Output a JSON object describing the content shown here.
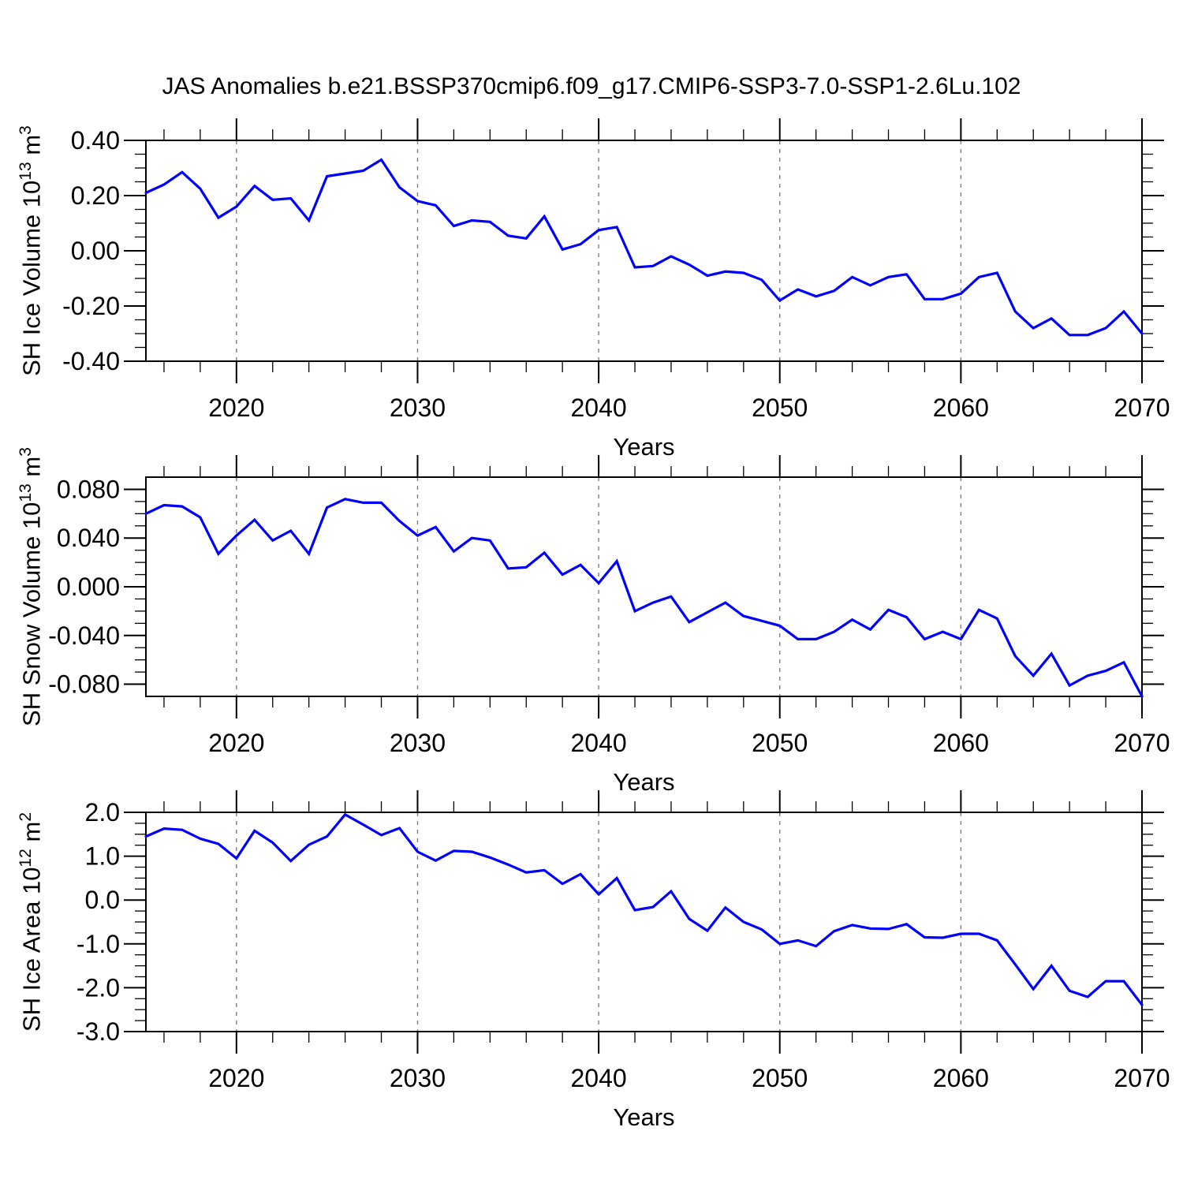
{
  "title": "JAS Anomalies b.e21.BSSP370cmip6.f09_g17.CMIP6-SSP3-7.0-SSP1-2.6Lu.102",
  "line_color": "#0000FF",
  "grid_color": "#7F7F7F",
  "x_axis": {
    "label": "Years",
    "range": [
      2015,
      2070
    ],
    "major_ticks": [
      {
        "v": 2020,
        "label": "2020"
      },
      {
        "v": 2030,
        "label": "2030"
      },
      {
        "v": 2040,
        "label": "2040"
      },
      {
        "v": 2050,
        "label": "2050"
      },
      {
        "v": 2060,
        "label": "2060"
      },
      {
        "v": 2070,
        "label": "2070"
      }
    ],
    "minor_step": 2,
    "grid_years": [
      2020,
      2030,
      2040,
      2050,
      2060
    ]
  },
  "chart_data": [
    {
      "type": "line",
      "name": "SH Ice Volume",
      "xlabel": "Years",
      "ylabel": "SH Ice Volume 10¹³ m³",
      "ylabel_parts": {
        "pre": "SH Ice Volume 10",
        "exp": "13",
        "unit": " m",
        "unit_exp": "3"
      },
      "ylim": [
        -0.4,
        0.4
      ],
      "y_minor_step": 0.05,
      "yticks": [
        {
          "v": 0.4,
          "label": "0.40"
        },
        {
          "v": 0.2,
          "label": "0.20"
        },
        {
          "v": 0.0,
          "label": "0.00"
        },
        {
          "v": -0.2,
          "label": "-0.20"
        },
        {
          "v": -0.4,
          "label": "-0.40"
        }
      ],
      "x": [
        2015,
        2016,
        2017,
        2018,
        2019,
        2020,
        2021,
        2022,
        2023,
        2024,
        2025,
        2026,
        2027,
        2028,
        2029,
        2030,
        2031,
        2032,
        2033,
        2034,
        2035,
        2036,
        2037,
        2038,
        2039,
        2040,
        2041,
        2042,
        2043,
        2044,
        2045,
        2046,
        2047,
        2048,
        2049,
        2050,
        2051,
        2052,
        2053,
        2054,
        2055,
        2056,
        2057,
        2058,
        2059,
        2060,
        2061,
        2062,
        2063,
        2064,
        2065,
        2066,
        2067,
        2068,
        2069,
        2070
      ],
      "values": [
        0.21,
        0.24,
        0.285,
        0.225,
        0.12,
        0.16,
        0.235,
        0.185,
        0.19,
        0.11,
        0.27,
        0.28,
        0.29,
        0.33,
        0.23,
        0.18,
        0.165,
        0.09,
        0.11,
        0.105,
        0.055,
        0.045,
        0.125,
        0.005,
        0.024,
        0.075,
        0.086,
        -0.06,
        -0.055,
        -0.02,
        -0.05,
        -0.09,
        -0.075,
        -0.08,
        -0.105,
        -0.18,
        -0.14,
        -0.165,
        -0.145,
        -0.095,
        -0.125,
        -0.095,
        -0.085,
        -0.175,
        -0.175,
        -0.155,
        -0.095,
        -0.08,
        -0.22,
        -0.28,
        -0.245,
        -0.305,
        -0.305,
        -0.28,
        -0.22,
        -0.3
      ]
    },
    {
      "type": "line",
      "name": "SH Snow Volume",
      "xlabel": "Years",
      "ylabel": "SH Snow Volume 10¹³ m³",
      "ylabel_parts": {
        "pre": "SH Snow Volume 10",
        "exp": "13",
        "unit": " m",
        "unit_exp": "3"
      },
      "ylim": [
        -0.09,
        0.09
      ],
      "y_minor_step": 0.01,
      "yticks": [
        {
          "v": 0.08,
          "label": "0.080"
        },
        {
          "v": 0.04,
          "label": "0.040"
        },
        {
          "v": 0.0,
          "label": "0.000"
        },
        {
          "v": -0.04,
          "label": "-0.040"
        },
        {
          "v": -0.08,
          "label": "-0.080"
        }
      ],
      "x": [
        2015,
        2016,
        2017,
        2018,
        2019,
        2020,
        2021,
        2022,
        2023,
        2024,
        2025,
        2026,
        2027,
        2028,
        2029,
        2030,
        2031,
        2032,
        2033,
        2034,
        2035,
        2036,
        2037,
        2038,
        2039,
        2040,
        2041,
        2042,
        2043,
        2044,
        2045,
        2046,
        2047,
        2048,
        2049,
        2050,
        2051,
        2052,
        2053,
        2054,
        2055,
        2056,
        2057,
        2058,
        2059,
        2060,
        2061,
        2062,
        2063,
        2064,
        2065,
        2066,
        2067,
        2068,
        2069,
        2070
      ],
      "values": [
        0.06,
        0.067,
        0.066,
        0.057,
        0.027,
        0.042,
        0.055,
        0.038,
        0.046,
        0.027,
        0.065,
        0.072,
        0.069,
        0.069,
        0.054,
        0.042,
        0.049,
        0.029,
        0.04,
        0.038,
        0.015,
        0.016,
        0.028,
        0.01,
        0.018,
        0.003,
        0.021,
        -0.02,
        -0.013,
        -0.008,
        -0.029,
        -0.021,
        -0.013,
        -0.024,
        -0.028,
        -0.032,
        -0.043,
        -0.043,
        -0.037,
        -0.027,
        -0.035,
        -0.019,
        -0.025,
        -0.043,
        -0.037,
        -0.043,
        -0.019,
        -0.026,
        -0.057,
        -0.073,
        -0.055,
        -0.081,
        -0.073,
        -0.069,
        -0.062,
        -0.09
      ]
    },
    {
      "type": "line",
      "name": "SH Ice Area",
      "xlabel": "Years",
      "ylabel": "SH Ice Area 10¹² m²",
      "ylabel_parts": {
        "pre": "SH Ice Area 10",
        "exp": "12",
        "unit": " m",
        "unit_exp": "2"
      },
      "ylim": [
        -3.0,
        2.0
      ],
      "y_minor_step": 0.25,
      "yticks": [
        {
          "v": 2.0,
          "label": "2.0"
        },
        {
          "v": 1.0,
          "label": "1.0"
        },
        {
          "v": 0.0,
          "label": "0.0"
        },
        {
          "v": -1.0,
          "label": "-1.0"
        },
        {
          "v": -2.0,
          "label": "-2.0"
        },
        {
          "v": -3.0,
          "label": "-3.0"
        }
      ],
      "x": [
        2015,
        2016,
        2017,
        2018,
        2019,
        2020,
        2021,
        2022,
        2023,
        2024,
        2025,
        2026,
        2027,
        2028,
        2029,
        2030,
        2031,
        2032,
        2033,
        2034,
        2035,
        2036,
        2037,
        2038,
        2039,
        2040,
        2041,
        2042,
        2043,
        2044,
        2045,
        2046,
        2047,
        2048,
        2049,
        2050,
        2051,
        2052,
        2053,
        2054,
        2055,
        2056,
        2057,
        2058,
        2059,
        2060,
        2061,
        2062,
        2063,
        2064,
        2065,
        2066,
        2067,
        2068,
        2069,
        2070
      ],
      "values": [
        1.45,
        1.63,
        1.6,
        1.4,
        1.28,
        0.95,
        1.58,
        1.31,
        0.89,
        1.26,
        1.45,
        1.95,
        1.72,
        1.48,
        1.64,
        1.1,
        0.9,
        1.12,
        1.1,
        0.97,
        0.81,
        0.63,
        0.68,
        0.37,
        0.59,
        0.13,
        0.5,
        -0.23,
        -0.16,
        0.2,
        -0.43,
        -0.7,
        -0.17,
        -0.5,
        -0.67,
        -1.0,
        -0.92,
        -1.05,
        -0.71,
        -0.57,
        -0.65,
        -0.66,
        -0.55,
        -0.85,
        -0.86,
        -0.77,
        -0.77,
        -0.92,
        -1.47,
        -2.03,
        -1.5,
        -2.07,
        -2.21,
        -1.85,
        -1.85,
        -2.39
      ]
    }
  ]
}
